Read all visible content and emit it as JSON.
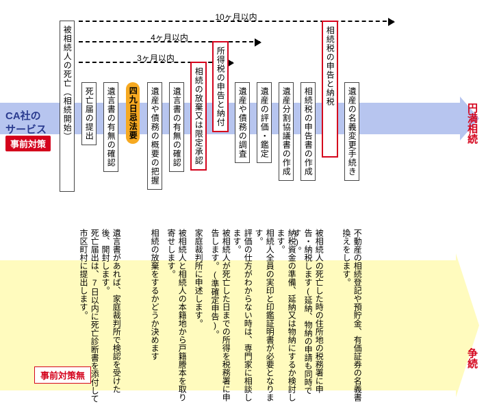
{
  "colors": {
    "blue_arrow": "#b7c5ef",
    "yellow_arrow": "#fffbbe",
    "red": "#d4031c",
    "orange": "#f6a921",
    "navy": "#2a3b8f",
    "box_border": "#444444",
    "background": "#ffffff"
  },
  "labels": {
    "ca": "CA社の",
    "service": "サービス",
    "pre_tag": "事前対策",
    "no_pre_tag": "事前対策無",
    "enman": "円満相続",
    "souzoku": "争続"
  },
  "timeline": {
    "t3": "3ヶ月以内",
    "t4": "4ヶ月以内",
    "t10": "10ヶ月以内"
  },
  "cols": [
    {
      "top": "被相続人の死亡（相続開始）",
      "top_style": "boxed",
      "spacer": 0,
      "desc": ""
    },
    {
      "top": "死亡届の提出",
      "top_style": "boxed",
      "spacer": 90,
      "desc": "死亡届出は、7日以内に死亡診断書を添付して市区町村に提出します。"
    },
    {
      "top": "遺言書の有無の確認",
      "top_style": "boxed",
      "spacer": 90,
      "desc": "遺言書があれば、家庭裁判所で検認を受けた後、開封します。"
    },
    {
      "top": "四九日忌法要",
      "top_style": "orangebox",
      "spacer": 90,
      "desc": ""
    },
    {
      "top": "遺産や債務の概要の把握",
      "top_style": "boxed",
      "spacer": 90,
      "desc": "相続の放棄をするかどうか決めます"
    },
    {
      "top": "遺言書の有無の確認",
      "top_style": "boxed",
      "spacer": 90,
      "desc": "被相続人と相続人の本籍地から戸籍謄本を取り寄せします。"
    },
    {
      "top": "相続の放棄又は限定承認",
      "top_style": "redbox",
      "spacer": 60,
      "desc": "家庭裁判所に申述します。"
    },
    {
      "top": "所得税の申告と納付",
      "top_style": "redbox",
      "spacer": 30,
      "desc": "被相続人が死亡した日までの所得を税務署に申告します。(準確定申告)。"
    },
    {
      "top": "遺産や債務の調査",
      "top_style": "boxed",
      "spacer": 90,
      "desc": "評価の仕方がわからない時は、専門家に相談します。"
    },
    {
      "top": "遺産の評価・鑑定",
      "top_style": "boxed",
      "spacer": 90,
      "desc": "相続人全員の実印と印鑑証明書が必要となります。"
    },
    {
      "top": "遺産分割協議書の作成",
      "top_style": "boxed",
      "spacer": 90,
      "desc": "納税資金の準備、延納又は物納にするか検討します。"
    },
    {
      "top": "相続税の申告書の作成",
      "top_style": "boxed",
      "spacer": 90,
      "desc": "被相続人の死亡した時の住所地の税務署に申告・納税します(延納、物納の申請も同時です)。"
    },
    {
      "top": "相続税の申告と納税",
      "top_style": "redbox",
      "spacer": 0,
      "desc": ""
    },
    {
      "top": "遺産の名義変更手続き",
      "top_style": "boxed",
      "spacer": 90,
      "desc": "不動産の相続登記や預貯金、有価証券の名義書換えをします。"
    }
  ]
}
